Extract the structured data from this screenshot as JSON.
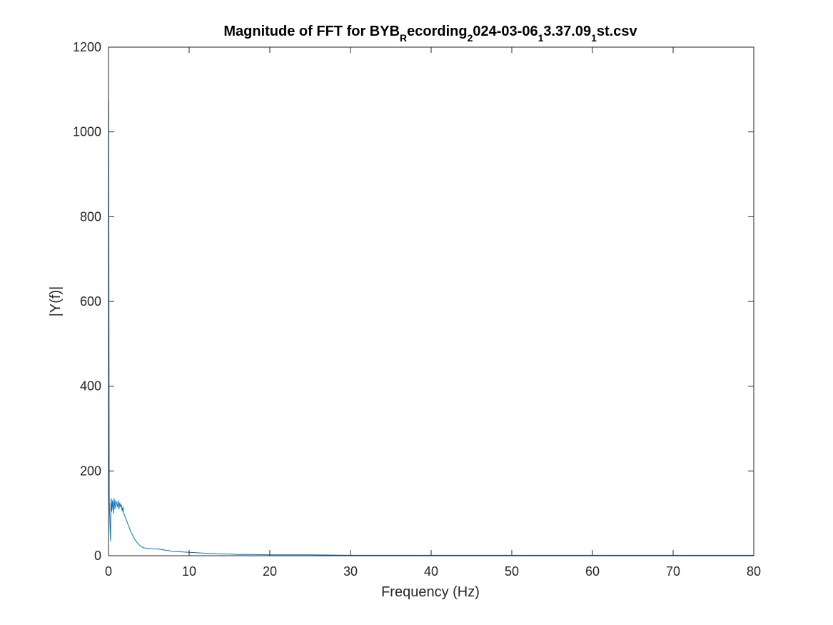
{
  "chart_data": {
    "type": "line",
    "title": {
      "main": "Magnitude of FFT for BYB",
      "parts": [
        {
          "text": "Magnitude of FFT for BYB",
          "style": "normal"
        },
        {
          "text": "R",
          "style": "sub"
        },
        {
          "text": "ecording",
          "style": "normal"
        },
        {
          "text": "2",
          "style": "sub"
        },
        {
          "text": "024-03-06",
          "style": "normal"
        },
        {
          "text": "1",
          "style": "sub"
        },
        {
          "text": "3.37.09",
          "style": "normal"
        },
        {
          "text": "1",
          "style": "sub"
        },
        {
          "text": "st.csv",
          "style": "normal"
        }
      ]
    },
    "xlabel": "Frequency (Hz)",
    "ylabel": "|Y(f)|",
    "xlim": [
      0,
      80
    ],
    "ylim": [
      0,
      1200
    ],
    "xticks": [
      0,
      10,
      20,
      30,
      40,
      50,
      60,
      70,
      80
    ],
    "yticks": [
      0,
      200,
      400,
      600,
      800,
      1000,
      1200
    ],
    "grid": false,
    "line_color": "#0072BD",
    "series": [
      {
        "x": [
          0,
          0.02,
          0.04,
          0.06,
          0.08,
          0.1,
          0.15,
          0.2,
          0.25,
          0.3,
          0.35,
          0.4,
          0.5,
          0.6,
          0.7,
          0.8,
          0.9,
          1.0,
          1.1,
          1.2,
          1.3,
          1.4,
          1.5,
          1.6,
          1.7,
          1.8,
          1.9,
          2.0,
          2.2,
          2.4,
          2.6,
          2.8,
          3.0,
          3.2,
          3.5,
          3.8,
          4.0,
          4.3,
          4.6,
          5.0,
          5.5,
          6.0,
          6.5,
          7.0,
          7.5,
          8.0,
          9.0,
          10.0,
          11.0,
          12.0,
          13.0,
          14.0,
          15.0,
          16.0,
          18.0,
          20.0,
          22.0,
          25.0,
          30.0,
          35.0,
          40.0,
          50.0,
          60.0,
          70.0,
          80.0
        ],
        "values": [
          0,
          1075,
          850,
          550,
          310,
          135,
          95,
          60,
          35,
          120,
          135,
          105,
          130,
          100,
          135,
          110,
          130,
          125,
          115,
          130,
          110,
          125,
          115,
          120,
          105,
          115,
          100,
          95,
          85,
          75,
          65,
          55,
          48,
          40,
          32,
          26,
          22,
          19,
          18,
          17,
          16,
          16,
          15,
          13,
          12,
          10,
          9,
          8,
          7,
          6,
          5,
          4,
          4,
          3,
          3,
          2,
          2,
          2,
          1,
          1,
          1,
          1,
          1,
          1,
          1
        ]
      }
    ]
  }
}
